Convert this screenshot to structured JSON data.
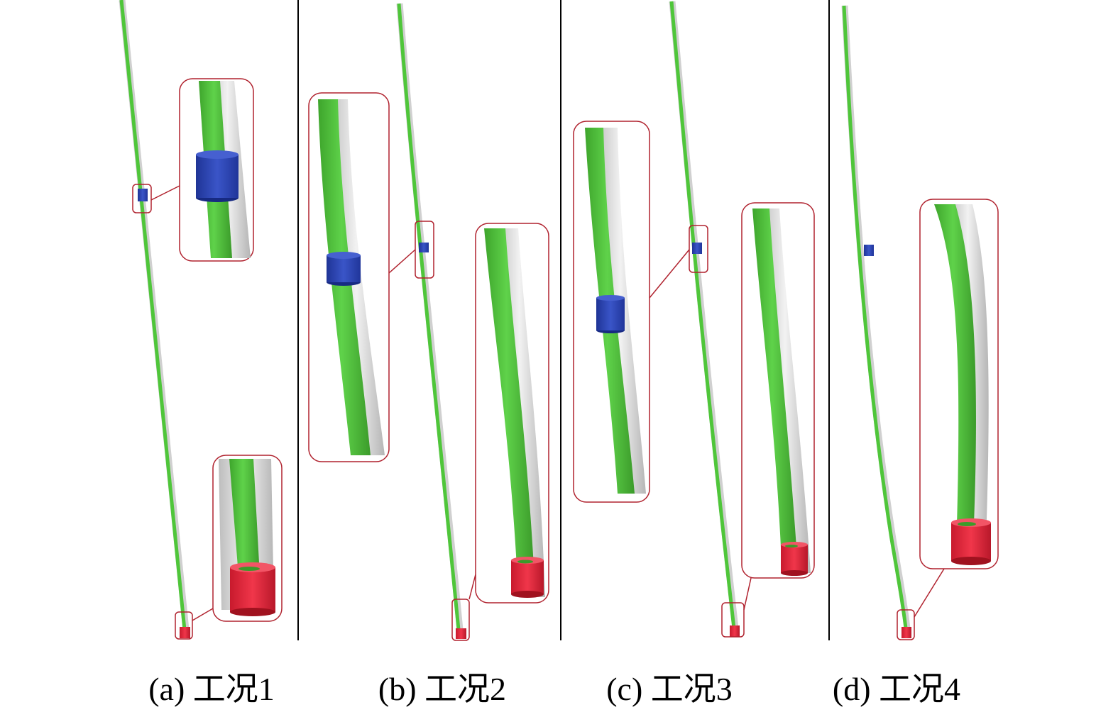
{
  "colors": {
    "rod": "#4fc63a",
    "rod_dark": "#2f8f22",
    "tubing": "#cfcfcf",
    "centralizer": "#2b45b0",
    "pump": "#e0243a",
    "callout": "#b0222e",
    "divider": "#000000"
  },
  "panels": [
    {
      "caption": "(a) 工况1"
    },
    {
      "caption": "(b) 工况2"
    },
    {
      "caption": "(c) 工况3"
    },
    {
      "caption": "(d) 工况4"
    }
  ]
}
